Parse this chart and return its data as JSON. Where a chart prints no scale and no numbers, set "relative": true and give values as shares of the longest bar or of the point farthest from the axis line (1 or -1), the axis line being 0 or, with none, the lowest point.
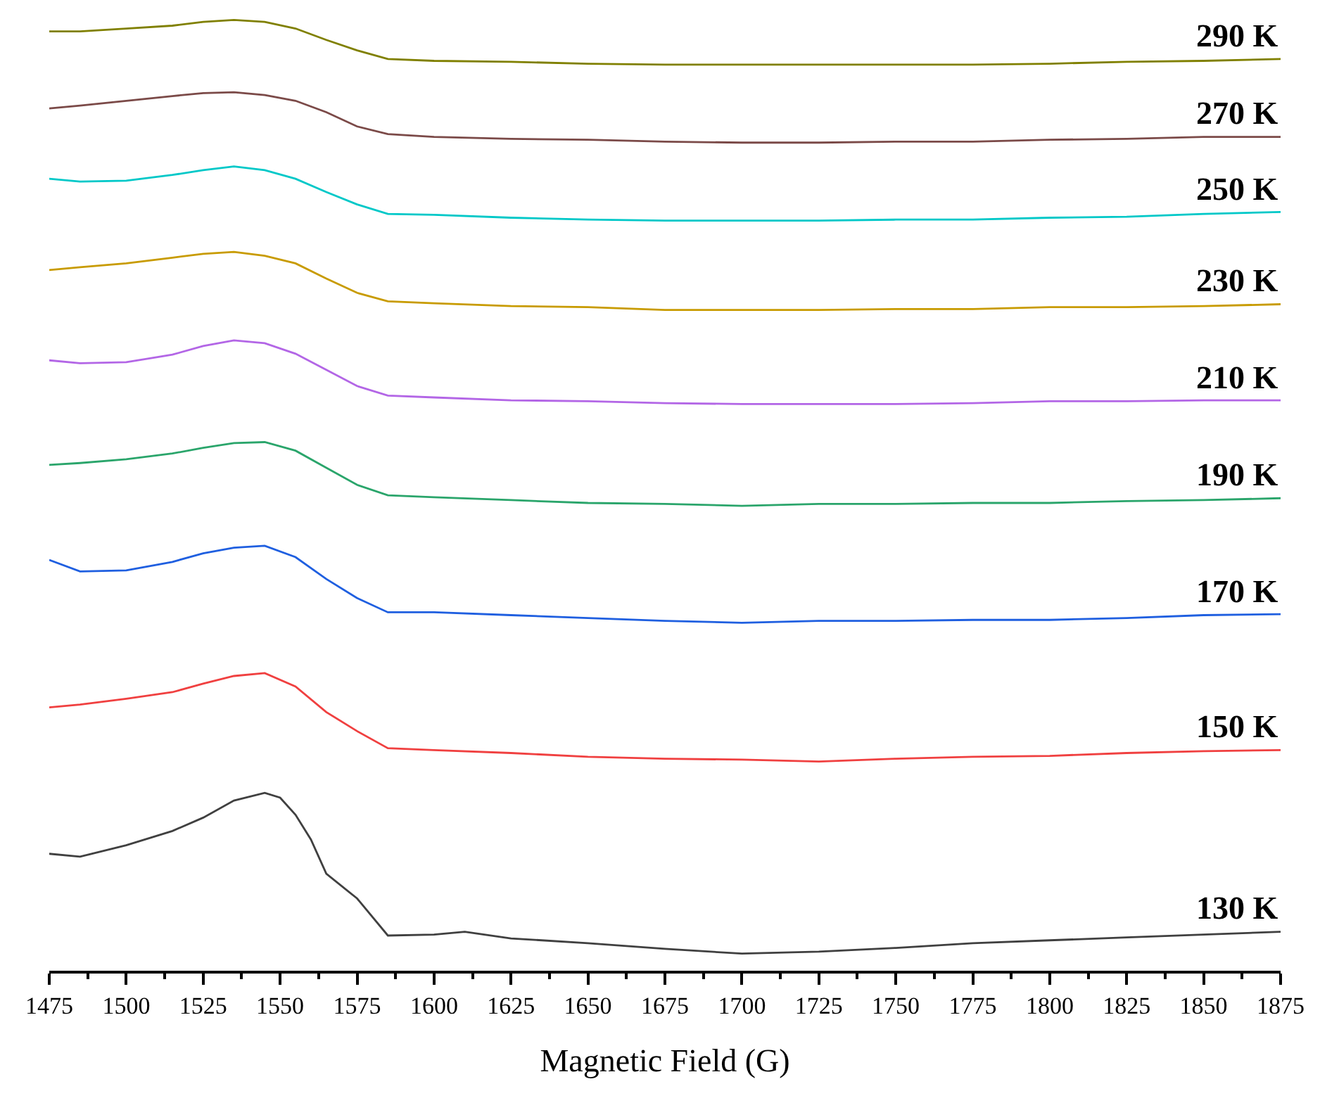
{
  "chart_data": {
    "type": "line",
    "relative": true,
    "xlabel": "Magnetic Field (G)",
    "xlim": [
      1475,
      1875
    ],
    "xticks": [
      1475,
      1500,
      1525,
      1550,
      1575,
      1600,
      1625,
      1650,
      1675,
      1700,
      1725,
      1750,
      1775,
      1800,
      1825,
      1850,
      1875
    ],
    "legend": false,
    "grid": false,
    "marker": "none",
    "line_style": "solid",
    "x": [
      1475,
      1485,
      1500,
      1515,
      1525,
      1535,
      1545,
      1555,
      1565,
      1575,
      1585,
      1600,
      1625,
      1650,
      1675,
      1700,
      1725,
      1750,
      1775,
      1800,
      1825,
      1850,
      1875
    ],
    "series": [
      {
        "name": "290 K",
        "color": "#808000",
        "values": [
          0.988,
          0.988,
          0.991,
          0.994,
          0.998,
          1.0,
          0.998,
          0.991,
          0.979,
          0.968,
          0.959,
          0.957,
          0.956,
          0.954,
          0.953,
          0.953,
          0.953,
          0.953,
          0.953,
          0.954,
          0.956,
          0.957,
          0.959
        ]
      },
      {
        "name": "270 K",
        "color": "#7b4a48",
        "values": [
          0.907,
          0.91,
          0.915,
          0.92,
          0.923,
          0.924,
          0.921,
          0.915,
          0.903,
          0.888,
          0.88,
          0.877,
          0.875,
          0.874,
          0.872,
          0.871,
          0.871,
          0.872,
          0.872,
          0.874,
          0.875,
          0.877,
          0.877
        ]
      },
      {
        "name": "250 K",
        "color": "#00c8c8",
        "values": [
          0.833,
          0.83,
          0.831,
          0.837,
          0.842,
          0.846,
          0.842,
          0.833,
          0.819,
          0.806,
          0.796,
          0.795,
          0.792,
          0.79,
          0.789,
          0.789,
          0.789,
          0.79,
          0.79,
          0.792,
          0.793,
          0.796,
          0.798
        ]
      },
      {
        "name": "230 K",
        "color": "#c89b00",
        "values": [
          0.737,
          0.74,
          0.744,
          0.75,
          0.754,
          0.756,
          0.752,
          0.744,
          0.728,
          0.713,
          0.704,
          0.702,
          0.699,
          0.698,
          0.695,
          0.695,
          0.695,
          0.696,
          0.696,
          0.698,
          0.698,
          0.699,
          0.701
        ]
      },
      {
        "name": "210 K",
        "color": "#b366e6",
        "values": [
          0.642,
          0.639,
          0.64,
          0.648,
          0.657,
          0.663,
          0.66,
          0.649,
          0.632,
          0.615,
          0.605,
          0.603,
          0.6,
          0.599,
          0.597,
          0.596,
          0.596,
          0.596,
          0.597,
          0.599,
          0.599,
          0.6,
          0.6
        ]
      },
      {
        "name": "190 K",
        "color": "#2aa56b",
        "values": [
          0.532,
          0.534,
          0.538,
          0.544,
          0.55,
          0.555,
          0.556,
          0.547,
          0.529,
          0.511,
          0.5,
          0.498,
          0.495,
          0.492,
          0.491,
          0.489,
          0.491,
          0.491,
          0.492,
          0.492,
          0.494,
          0.495,
          0.497
        ]
      },
      {
        "name": "170 K",
        "color": "#1f5fe0",
        "values": [
          0.432,
          0.42,
          0.421,
          0.43,
          0.439,
          0.445,
          0.447,
          0.435,
          0.412,
          0.392,
          0.377,
          0.377,
          0.374,
          0.371,
          0.368,
          0.366,
          0.368,
          0.368,
          0.369,
          0.369,
          0.371,
          0.374,
          0.375
        ]
      },
      {
        "name": "150 K",
        "color": "#f04040",
        "values": [
          0.277,
          0.28,
          0.286,
          0.293,
          0.302,
          0.31,
          0.313,
          0.299,
          0.272,
          0.252,
          0.234,
          0.232,
          0.229,
          0.225,
          0.223,
          0.222,
          0.22,
          0.223,
          0.225,
          0.226,
          0.229,
          0.231,
          0.232
        ]
      },
      {
        "name": "130 K",
        "color": "#404040",
        "x": [
          1475,
          1485,
          1500,
          1515,
          1525,
          1535,
          1545,
          1550,
          1555,
          1560,
          1565,
          1575,
          1585,
          1600,
          1610,
          1625,
          1650,
          1675,
          1700,
          1725,
          1750,
          1775,
          1800,
          1825,
          1850,
          1875
        ],
        "values": [
          0.123,
          0.12,
          0.132,
          0.147,
          0.161,
          0.179,
          0.187,
          0.182,
          0.164,
          0.138,
          0.102,
          0.076,
          0.037,
          0.038,
          0.041,
          0.034,
          0.029,
          0.023,
          0.018,
          0.02,
          0.024,
          0.029,
          0.032,
          0.035,
          0.038,
          0.041
        ]
      }
    ]
  }
}
